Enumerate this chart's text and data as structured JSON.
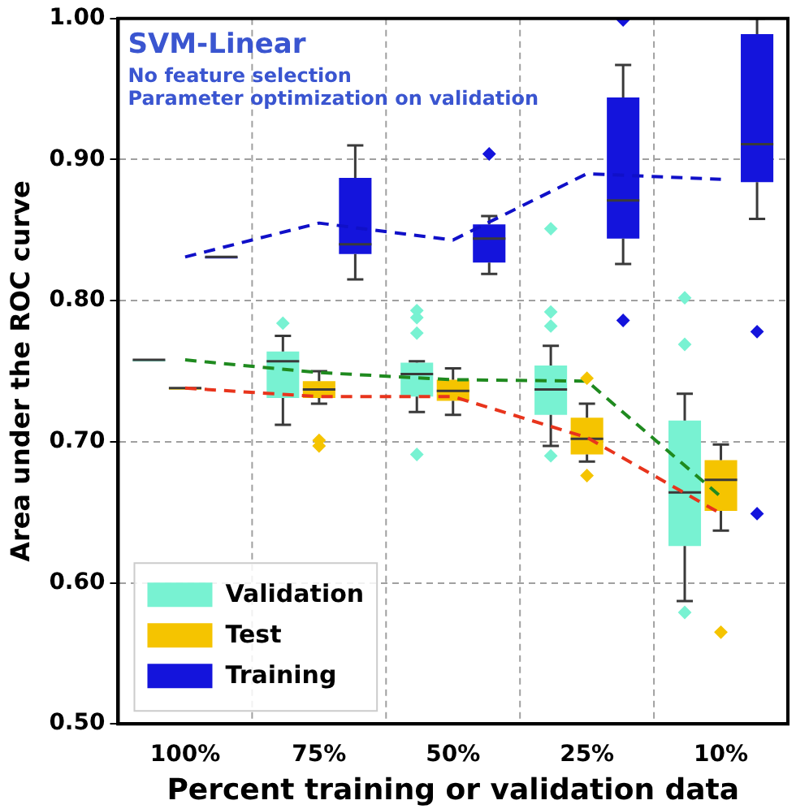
{
  "chart_data": {
    "type": "box",
    "xlabel": "Percent training or validation data",
    "ylabel": "Area under the ROC curve",
    "annotations": [
      "SVM-Linear",
      "No feature selection",
      "Parameter optimization on validation"
    ],
    "categories": [
      "100%",
      "75%",
      "50%",
      "25%",
      "10%"
    ],
    "ylim": [
      0.5,
      1.0
    ],
    "yticks": [
      {
        "value": 0.5,
        "label": "0.50"
      },
      {
        "value": 0.6,
        "label": "0.60"
      },
      {
        "value": 0.7,
        "label": "0.70"
      },
      {
        "value": 0.8,
        "label": "0.80"
      },
      {
        "value": 0.9,
        "label": "0.90"
      },
      {
        "value": 1.0,
        "label": "1.00"
      }
    ],
    "grid": true,
    "legend": "bottom left",
    "marker": "diamond",
    "line_style": "dashed",
    "series": [
      {
        "name": "Validation",
        "color": "#78f2d2",
        "boxes": [
          {
            "low": 0.758,
            "q1": 0.758,
            "median": 0.758,
            "q3": 0.758,
            "high": 0.758
          },
          {
            "low": 0.712,
            "q1": 0.731,
            "median": 0.757,
            "q3": 0.764,
            "high": 0.775,
            "outliers": [
              0.784
            ]
          },
          {
            "low": 0.721,
            "q1": 0.732,
            "median": 0.748,
            "q3": 0.756,
            "high": 0.757,
            "outliers": [
              0.793,
              0.788,
              0.777,
              0.691
            ]
          },
          {
            "low": 0.697,
            "q1": 0.719,
            "median": 0.737,
            "q3": 0.754,
            "high": 0.768,
            "outliers": [
              0.851,
              0.792,
              0.782,
              0.69
            ]
          },
          {
            "low": 0.587,
            "q1": 0.626,
            "median": 0.664,
            "q3": 0.715,
            "high": 0.734,
            "outliers": [
              0.802,
              0.769,
              0.579
            ]
          }
        ]
      },
      {
        "name": "Test",
        "color": "#f5c400",
        "boxes": [
          {
            "low": 0.738,
            "q1": 0.738,
            "median": 0.738,
            "q3": 0.738,
            "high": 0.738
          },
          {
            "low": 0.727,
            "q1": 0.731,
            "median": 0.737,
            "q3": 0.743,
            "high": 0.75,
            "outliers": [
              0.701,
              0.697
            ]
          },
          {
            "low": 0.719,
            "q1": 0.729,
            "median": 0.736,
            "q3": 0.744,
            "high": 0.752
          },
          {
            "low": 0.686,
            "q1": 0.691,
            "median": 0.702,
            "q3": 0.717,
            "high": 0.727,
            "outliers": [
              0.745,
              0.676
            ]
          },
          {
            "low": 0.637,
            "q1": 0.651,
            "median": 0.673,
            "q3": 0.687,
            "high": 0.698,
            "outliers": [
              0.565
            ]
          }
        ]
      },
      {
        "name": "Training",
        "color": "#1414dc",
        "boxes": [
          {
            "low": 0.831,
            "q1": 0.831,
            "median": 0.831,
            "q3": 0.831,
            "high": 0.831
          },
          {
            "low": 0.815,
            "q1": 0.833,
            "median": 0.84,
            "q3": 0.887,
            "high": 0.91
          },
          {
            "low": 0.819,
            "q1": 0.827,
            "median": 0.844,
            "q3": 0.854,
            "high": 0.86,
            "outliers": [
              0.904
            ]
          },
          {
            "low": 0.826,
            "q1": 0.844,
            "median": 0.871,
            "q3": 0.944,
            "high": 0.967,
            "outliers": [
              0.999,
              0.786
            ]
          },
          {
            "low": 0.858,
            "q1": 0.884,
            "median": 0.911,
            "q3": 0.989,
            "high": 1.0,
            "outliers": [
              0.778,
              0.649
            ]
          }
        ]
      },
      {
        "type": "line",
        "marker": "none",
        "color": "#1f8a1f",
        "values": [
          0.758,
          0.749,
          0.744,
          0.743,
          0.661
        ]
      },
      {
        "type": "line",
        "marker": "none",
        "color": "#e8341c",
        "values": [
          0.738,
          0.732,
          0.732,
          0.703,
          0.649
        ]
      },
      {
        "type": "line",
        "marker": "none",
        "color": "#1010c8",
        "values": [
          0.831,
          0.855,
          0.843,
          0.89,
          0.886
        ]
      }
    ]
  }
}
